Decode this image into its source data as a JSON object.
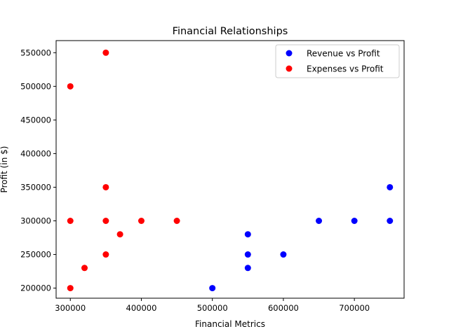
{
  "chart_data": {
    "type": "scatter",
    "title": "Financial Relationships",
    "xlabel": "Financial Metrics",
    "ylabel": "Profit (in $)",
    "xlim": [
      280000,
      770000
    ],
    "ylim": [
      185000,
      568000
    ],
    "xticks": [
      300000,
      400000,
      500000,
      600000,
      700000
    ],
    "yticks": [
      200000,
      250000,
      300000,
      350000,
      400000,
      450000,
      500000,
      550000
    ],
    "xtick_labels": [
      "300000",
      "400000",
      "500000",
      "600000",
      "700000"
    ],
    "ytick_labels": [
      "200000",
      "250000",
      "300000",
      "350000",
      "400000",
      "450000",
      "500000",
      "550000"
    ],
    "grid": false,
    "legend_position": "top-right",
    "series": [
      {
        "name": "Revenue vs Profit",
        "color": "#0000ff",
        "points": [
          {
            "x": 500000,
            "y": 200000
          },
          {
            "x": 550000,
            "y": 230000
          },
          {
            "x": 550000,
            "y": 250000
          },
          {
            "x": 550000,
            "y": 280000
          },
          {
            "x": 600000,
            "y": 250000
          },
          {
            "x": 650000,
            "y": 300000
          },
          {
            "x": 700000,
            "y": 300000
          },
          {
            "x": 750000,
            "y": 300000
          },
          {
            "x": 750000,
            "y": 350000
          }
        ]
      },
      {
        "name": "Expenses vs Profit",
        "color": "#ff0000",
        "points": [
          {
            "x": 300000,
            "y": 200000
          },
          {
            "x": 300000,
            "y": 300000
          },
          {
            "x": 300000,
            "y": 500000
          },
          {
            "x": 320000,
            "y": 230000
          },
          {
            "x": 350000,
            "y": 250000
          },
          {
            "x": 350000,
            "y": 300000
          },
          {
            "x": 350000,
            "y": 350000
          },
          {
            "x": 350000,
            "y": 550000
          },
          {
            "x": 370000,
            "y": 280000
          },
          {
            "x": 400000,
            "y": 300000
          },
          {
            "x": 450000,
            "y": 300000
          }
        ]
      }
    ]
  }
}
